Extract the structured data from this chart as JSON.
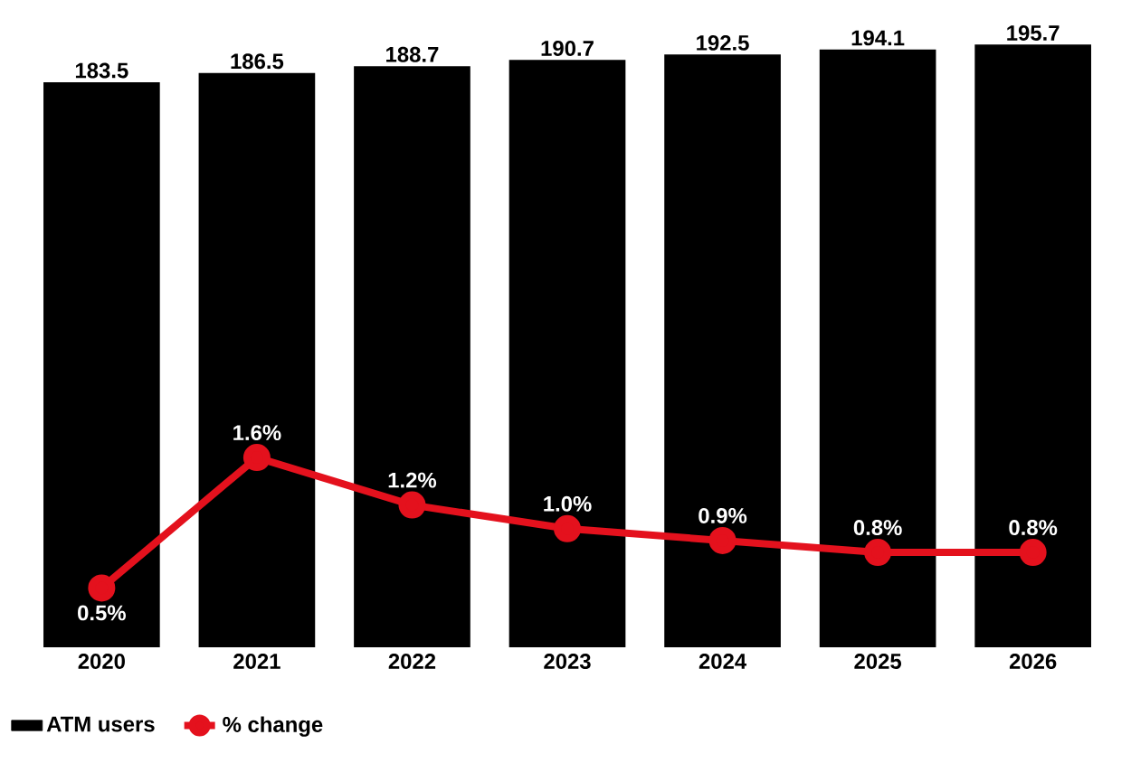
{
  "chart_data": {
    "type": "bar",
    "categories": [
      "2020",
      "2021",
      "2022",
      "2023",
      "2024",
      "2025",
      "2026"
    ],
    "series": [
      {
        "name": "ATM users",
        "color": "#000000",
        "values": [
          183.5,
          186.5,
          188.7,
          190.7,
          192.5,
          194.1,
          195.7
        ],
        "value_labels": [
          "183.5",
          "186.5",
          "188.7",
          "190.7",
          "192.5",
          "194.1",
          "195.7"
        ]
      },
      {
        "name": "% change",
        "type": "line",
        "axis": "y2",
        "color": "#e4111d",
        "values": [
          0.5,
          1.6,
          1.2,
          1.0,
          0.9,
          0.8,
          0.8
        ],
        "value_labels": [
          "0.5%",
          "1.6%",
          "1.2%",
          "1.0%",
          "0.9%",
          "0.8%",
          "0.8%"
        ]
      }
    ],
    "tick_labels": "x",
    "legend": "bottom left",
    "marker": "circle"
  }
}
